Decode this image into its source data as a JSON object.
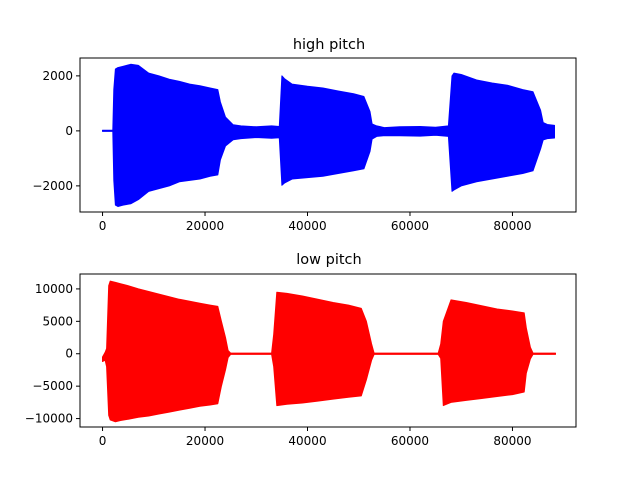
{
  "chart_data": [
    {
      "type": "line",
      "title": "high pitch",
      "xlabel": "",
      "ylabel": "",
      "xlim": [
        -4400,
        92400
      ],
      "ylim": [
        -2950,
        2650
      ],
      "xticks": [
        0,
        20000,
        40000,
        60000,
        80000
      ],
      "xtick_labels": [
        "0",
        "20000",
        "40000",
        "60000",
        "80000"
      ],
      "yticks": [
        -2000,
        0,
        2000
      ],
      "ytick_labels": [
        "−2000",
        "0",
        "2000"
      ],
      "grid": false,
      "color": "#0000ff",
      "envelope": {
        "x": [
          0,
          2000,
          2200,
          2500,
          3000,
          4000,
          5500,
          7000,
          9000,
          11000,
          13000,
          15000,
          17000,
          19000,
          21000,
          22500,
          23000,
          24000,
          25500,
          27000,
          30000,
          33000,
          34500,
          35000,
          35500,
          37000,
          40000,
          43000,
          46000,
          49000,
          51000,
          52200,
          52600,
          53500,
          55000,
          58000,
          62000,
          65000,
          67500,
          68200,
          68600,
          70000,
          73000,
          76000,
          79000,
          82000,
          84000,
          85500,
          86000,
          86800,
          88200
        ],
        "upper": [
          20,
          20,
          1500,
          2250,
          2300,
          2350,
          2420,
          2380,
          2100,
          2000,
          1880,
          1800,
          1700,
          1640,
          1560,
          1500,
          1050,
          500,
          220,
          180,
          150,
          180,
          160,
          2000,
          1900,
          1700,
          1620,
          1560,
          1450,
          1350,
          1250,
          700,
          250,
          180,
          120,
          150,
          160,
          130,
          180,
          2000,
          2100,
          2050,
          1850,
          1740,
          1660,
          1500,
          1420,
          750,
          300,
          230,
          200
        ],
        "lower": [
          -20,
          -20,
          -1800,
          -2700,
          -2750,
          -2700,
          -2650,
          -2500,
          -2200,
          -2100,
          -2000,
          -1850,
          -1800,
          -1750,
          -1650,
          -1600,
          -1050,
          -550,
          -320,
          -280,
          -240,
          -270,
          -250,
          -1980,
          -1900,
          -1750,
          -1700,
          -1650,
          -1550,
          -1450,
          -1380,
          -750,
          -300,
          -200,
          -170,
          -180,
          -190,
          -160,
          -200,
          -2200,
          -2150,
          -2000,
          -1850,
          -1750,
          -1650,
          -1550,
          -1450,
          -650,
          -330,
          -280,
          -260
        ]
      }
    },
    {
      "type": "line",
      "title": "low pitch",
      "xlabel": "",
      "ylabel": "",
      "xlim": [
        -4400,
        92400
      ],
      "ylim": [
        -11300,
        12300
      ],
      "xticks": [
        0,
        20000,
        40000,
        60000,
        80000
      ],
      "xtick_labels": [
        "0",
        "20000",
        "40000",
        "60000",
        "80000"
      ],
      "yticks": [
        -10000,
        -5000,
        0,
        5000,
        10000
      ],
      "ytick_labels": [
        "−10000",
        "−5000",
        "0",
        "5000",
        "10000"
      ],
      "grid": false,
      "color": "#ff0000",
      "envelope": {
        "x": [
          0,
          500,
          800,
          1200,
          1500,
          2500,
          3500,
          5000,
          7000,
          9000,
          11000,
          13000,
          15000,
          17000,
          19000,
          21000,
          22500,
          23200,
          24000,
          24500,
          25000,
          30000,
          33000,
          33400,
          34000,
          36000,
          39000,
          42000,
          45000,
          48000,
          50500,
          51500,
          52500,
          53000,
          60000,
          65500,
          66000,
          66500,
          68000,
          71000,
          74000,
          77000,
          80000,
          82300,
          82700,
          83500,
          84000,
          88400
        ],
        "upper": [
          -500,
          200,
          800,
          10500,
          11200,
          11000,
          10800,
          10500,
          10000,
          9600,
          9200,
          8800,
          8400,
          8100,
          7800,
          7500,
          7300,
          5000,
          2500,
          500,
          100,
          100,
          100,
          3000,
          9500,
          9300,
          8900,
          8400,
          7900,
          7500,
          7000,
          5000,
          1500,
          100,
          100,
          100,
          1500,
          5000,
          8300,
          7900,
          7400,
          6900,
          6600,
          6300,
          4000,
          1000,
          100,
          100
        ],
        "lower": [
          -1200,
          -1000,
          -2000,
          -9500,
          -10200,
          -10500,
          -10300,
          -10100,
          -9800,
          -9600,
          -9300,
          -9000,
          -8700,
          -8400,
          -8100,
          -7900,
          -7700,
          -5000,
          -2500,
          -600,
          -100,
          -100,
          -100,
          -2000,
          -8000,
          -7800,
          -7600,
          -7300,
          -7000,
          -6700,
          -6500,
          -4000,
          -1000,
          -100,
          -100,
          -100,
          -700,
          -8000,
          -7500,
          -7200,
          -6900,
          -6600,
          -6300,
          -5900,
          -3000,
          -800,
          -100,
          -100
        ]
      }
    }
  ]
}
